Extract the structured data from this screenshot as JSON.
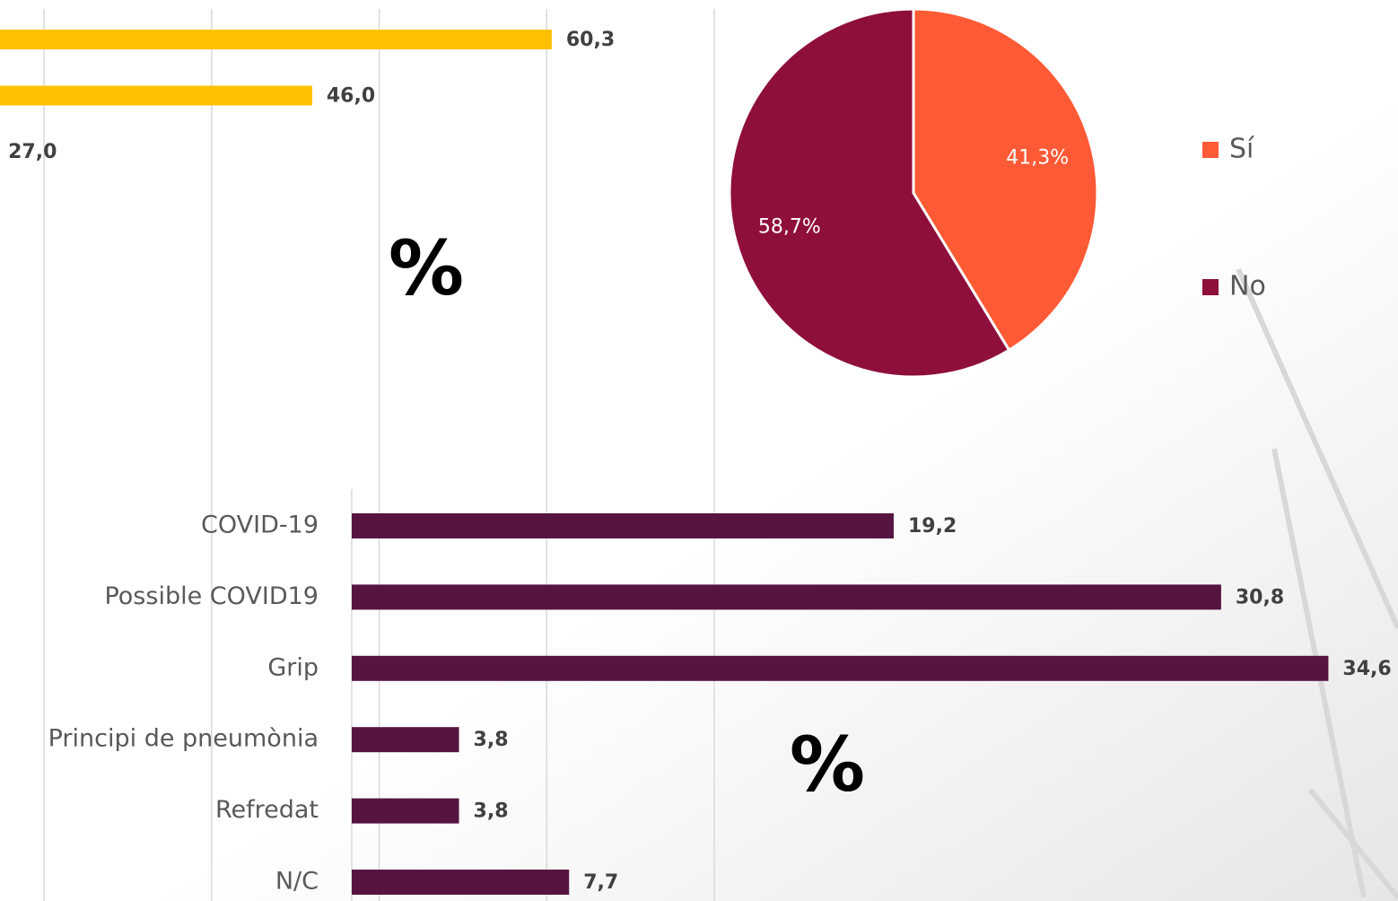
{
  "chart_data": [
    {
      "type": "bar",
      "title": "%",
      "categories": [
        null,
        null,
        null
      ],
      "values": [
        60.3,
        46.0,
        27.0
      ],
      "value_labels": [
        "60,3",
        "46,0",
        "27,0"
      ],
      "color": "#ffc000",
      "xlim": [
        0,
        70
      ],
      "xticks": [
        30,
        40,
        50,
        60,
        70
      ],
      "grid": true
    },
    {
      "type": "pie",
      "categories": [
        "Sí",
        "No"
      ],
      "values": [
        41.3,
        58.7
      ],
      "value_labels": [
        "41,3%",
        "58,7%"
      ],
      "colors": [
        "#ff5a36",
        "#8e0e3c"
      ],
      "legend": "right"
    },
    {
      "type": "bar",
      "title": "%",
      "categories": [
        "COVID-19",
        "Possible COVID19",
        "Grip",
        "Principi de pneumònia",
        "Refredat",
        "N/C"
      ],
      "values": [
        19.2,
        30.8,
        34.6,
        3.8,
        3.8,
        7.7
      ],
      "value_labels": [
        "19,2",
        "30,8",
        "34,6",
        "3,8",
        "3,8",
        "7,7"
      ],
      "color": "#561541",
      "xlim": [
        0,
        35
      ],
      "grid": false
    }
  ]
}
